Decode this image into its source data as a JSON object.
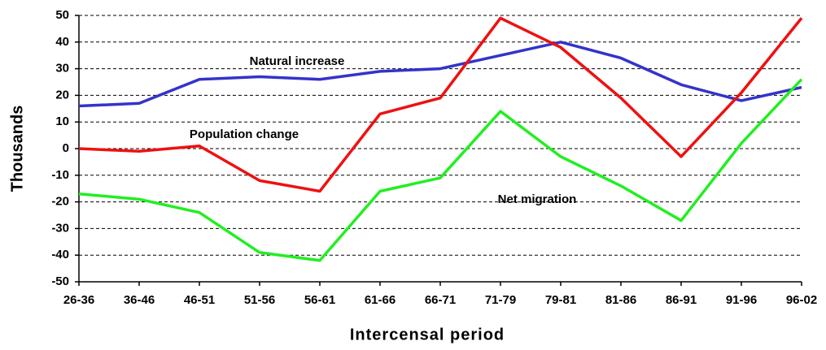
{
  "chart_data": {
    "type": "line",
    "xlabel": "Intercensal period",
    "ylabel": "Thousands",
    "categories": [
      "26-36",
      "36-46",
      "46-51",
      "51-56",
      "56-61",
      "61-66",
      "66-71",
      "71-79",
      "79-81",
      "81-86",
      "86-91",
      "91-96",
      "96-02"
    ],
    "series": [
      {
        "name": "Natural increase",
        "color": "#3333cc",
        "values": [
          16,
          17,
          26,
          27,
          26,
          29,
          30,
          35,
          40,
          34,
          24,
          18,
          23
        ]
      },
      {
        "name": "Population change",
        "color": "#ee1111",
        "values": [
          0,
          -1,
          1,
          -12,
          -16,
          13,
          19,
          49,
          38,
          19,
          -3,
          21,
          49
        ]
      },
      {
        "name": "Net migration",
        "color": "#22ee22",
        "values": [
          -17,
          -19,
          -24,
          -39,
          -42,
          -16,
          -11,
          14,
          -3,
          -14,
          -27,
          2,
          26
        ]
      }
    ],
    "ylim": [
      -50,
      50
    ],
    "yticks": [
      -50,
      -40,
      -30,
      -20,
      -10,
      0,
      10,
      20,
      30,
      40,
      50
    ],
    "grid": true
  }
}
